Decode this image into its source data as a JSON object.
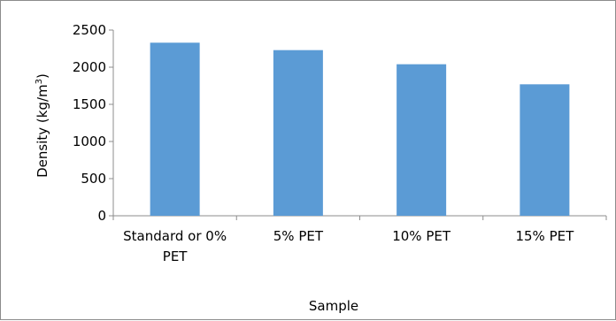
{
  "chart_data": {
    "type": "bar",
    "title": "",
    "categories": [
      "Standard or 0% PET",
      "5% PET",
      "10% PET",
      "15% PET"
    ],
    "category_lines": [
      [
        "Standard or 0%",
        "PET"
      ],
      [
        "5% PET"
      ],
      [
        "10% PET"
      ],
      [
        "15% PET"
      ]
    ],
    "values": [
      2330,
      2230,
      2040,
      1770
    ],
    "xlabel": "Sample",
    "ylabel_main": "Density (kg/m",
    "ylabel_sup": "3",
    "ylabel_close": ")",
    "ylim": [
      0,
      2500
    ],
    "yticks": [
      0,
      500,
      1000,
      1500,
      2000,
      2500
    ],
    "ytick_labels": [
      "0",
      "500",
      "1000",
      "1500",
      "2000",
      "2500"
    ],
    "bar_color": "#5b9bd5",
    "grid": false,
    "legend": "none"
  }
}
